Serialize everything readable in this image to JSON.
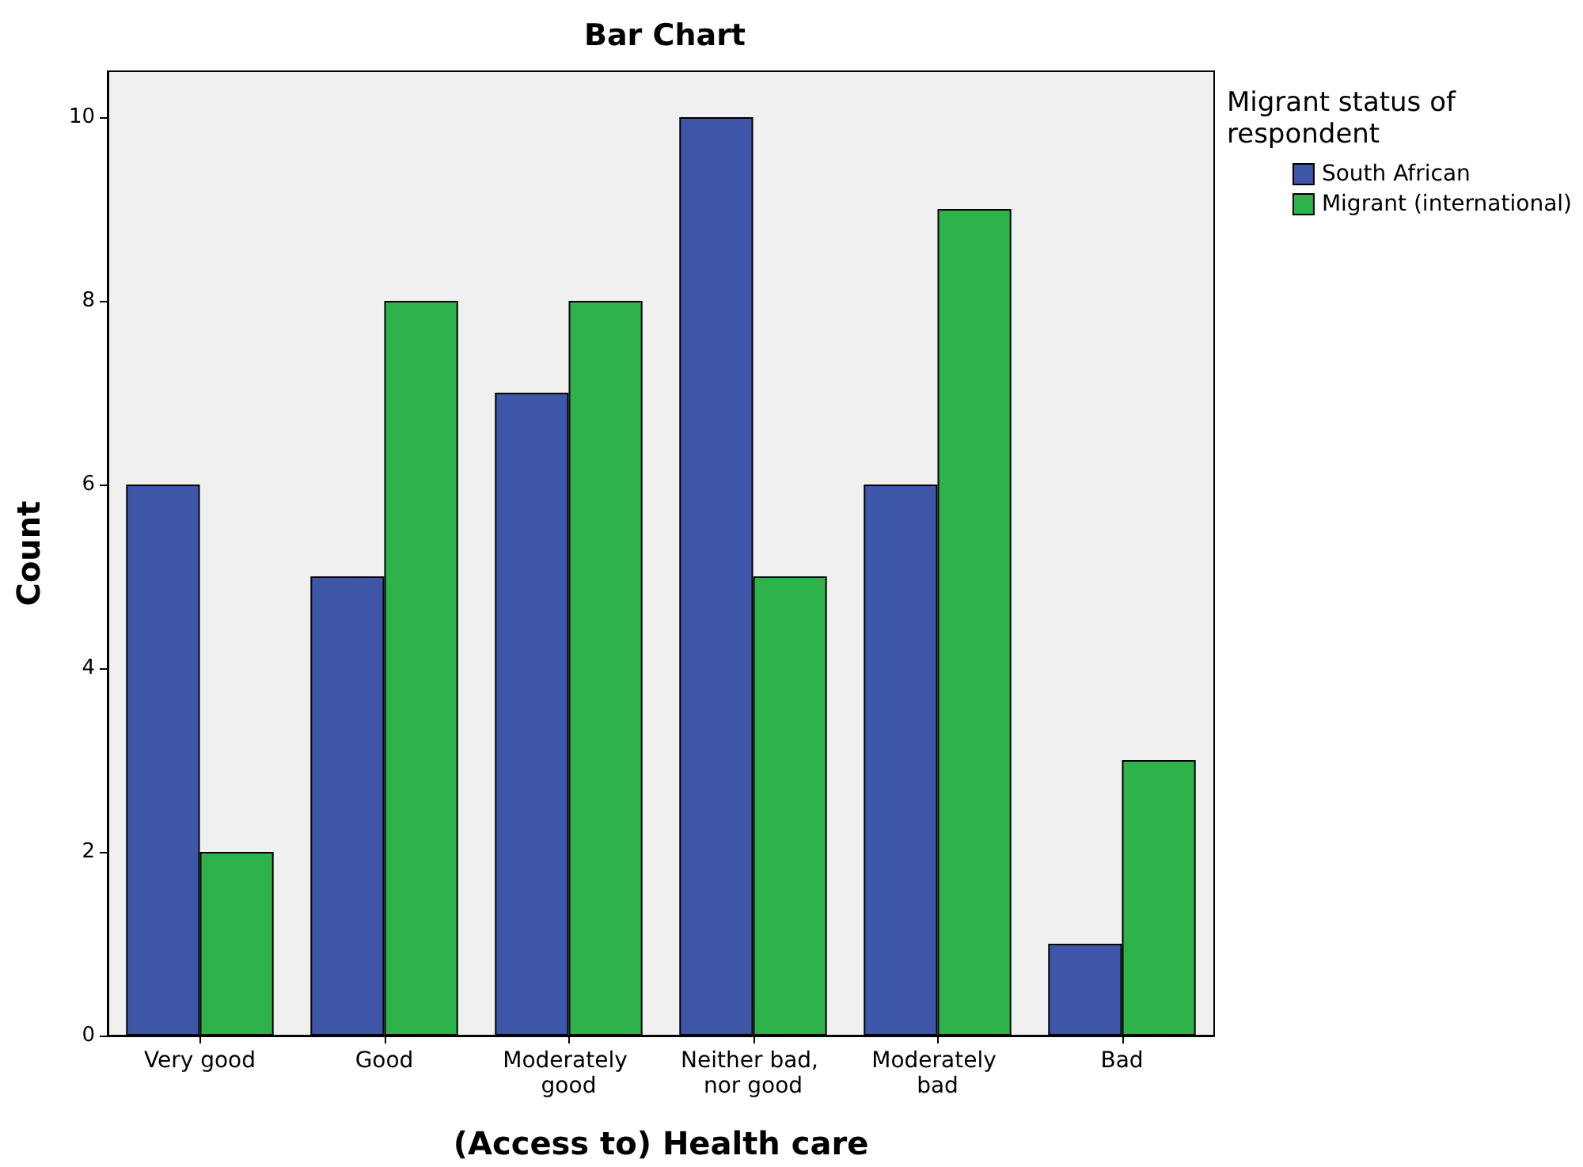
{
  "chart_data": {
    "type": "bar",
    "title": "Bar Chart",
    "xlabel": "(Access to) Health care",
    "ylabel": "Count",
    "legend_title": "Migrant status of respondent",
    "categories": [
      "Very good",
      "Good",
      "Moderately good",
      "Neither bad, nor good",
      "Moderately bad",
      "Bad"
    ],
    "series": [
      {
        "name": "South African",
        "color": "#3e56a8",
        "values": [
          6,
          5,
          7,
          10,
          6,
          1
        ]
      },
      {
        "name": "Migrant (international)",
        "color": "#2db34a",
        "values": [
          2,
          8,
          8,
          5,
          9,
          3
        ]
      }
    ],
    "ylim": [
      0,
      10.5
    ],
    "yticks": [
      0,
      2,
      4,
      6,
      8,
      10
    ],
    "grid": false,
    "legend": "top right"
  }
}
